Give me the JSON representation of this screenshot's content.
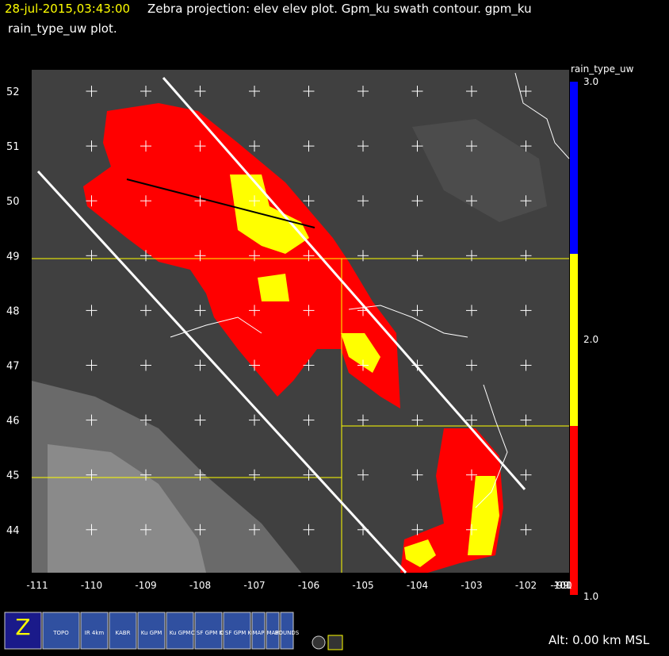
{
  "header": {
    "line1_time": "28-jul-2015,03:43:00",
    "line1_text": "Zebra projection: elev elev  plot.  Gpm_ku swath contour.  gpm_ku",
    "line2_text": "rain_type_uw  plot."
  },
  "map": {
    "lat_labels": [
      "52",
      "51",
      "50",
      "49",
      "48",
      "47",
      "46",
      "45",
      "44"
    ],
    "lon_labels": [
      "-111",
      "-110",
      "-109",
      "-108",
      "-107",
      "-106",
      "-105",
      "-104",
      "-103",
      "-102",
      "-101",
      "-100",
      "-99"
    ]
  },
  "colorbar": {
    "title": "rain_type_uw",
    "labels": [
      "3.0",
      "2.0",
      "1.0"
    ]
  },
  "toolbar": {
    "icons": [
      "Z",
      "TOPO",
      "IR 4km",
      "KABR",
      "Ku GPM",
      "Ku GPM",
      "C SF GPM Ku",
      "C SF GPM Ku",
      "MAP",
      "MAP",
      "BOUNDS"
    ]
  },
  "status": "Alt: 0.00 km MSL"
}
